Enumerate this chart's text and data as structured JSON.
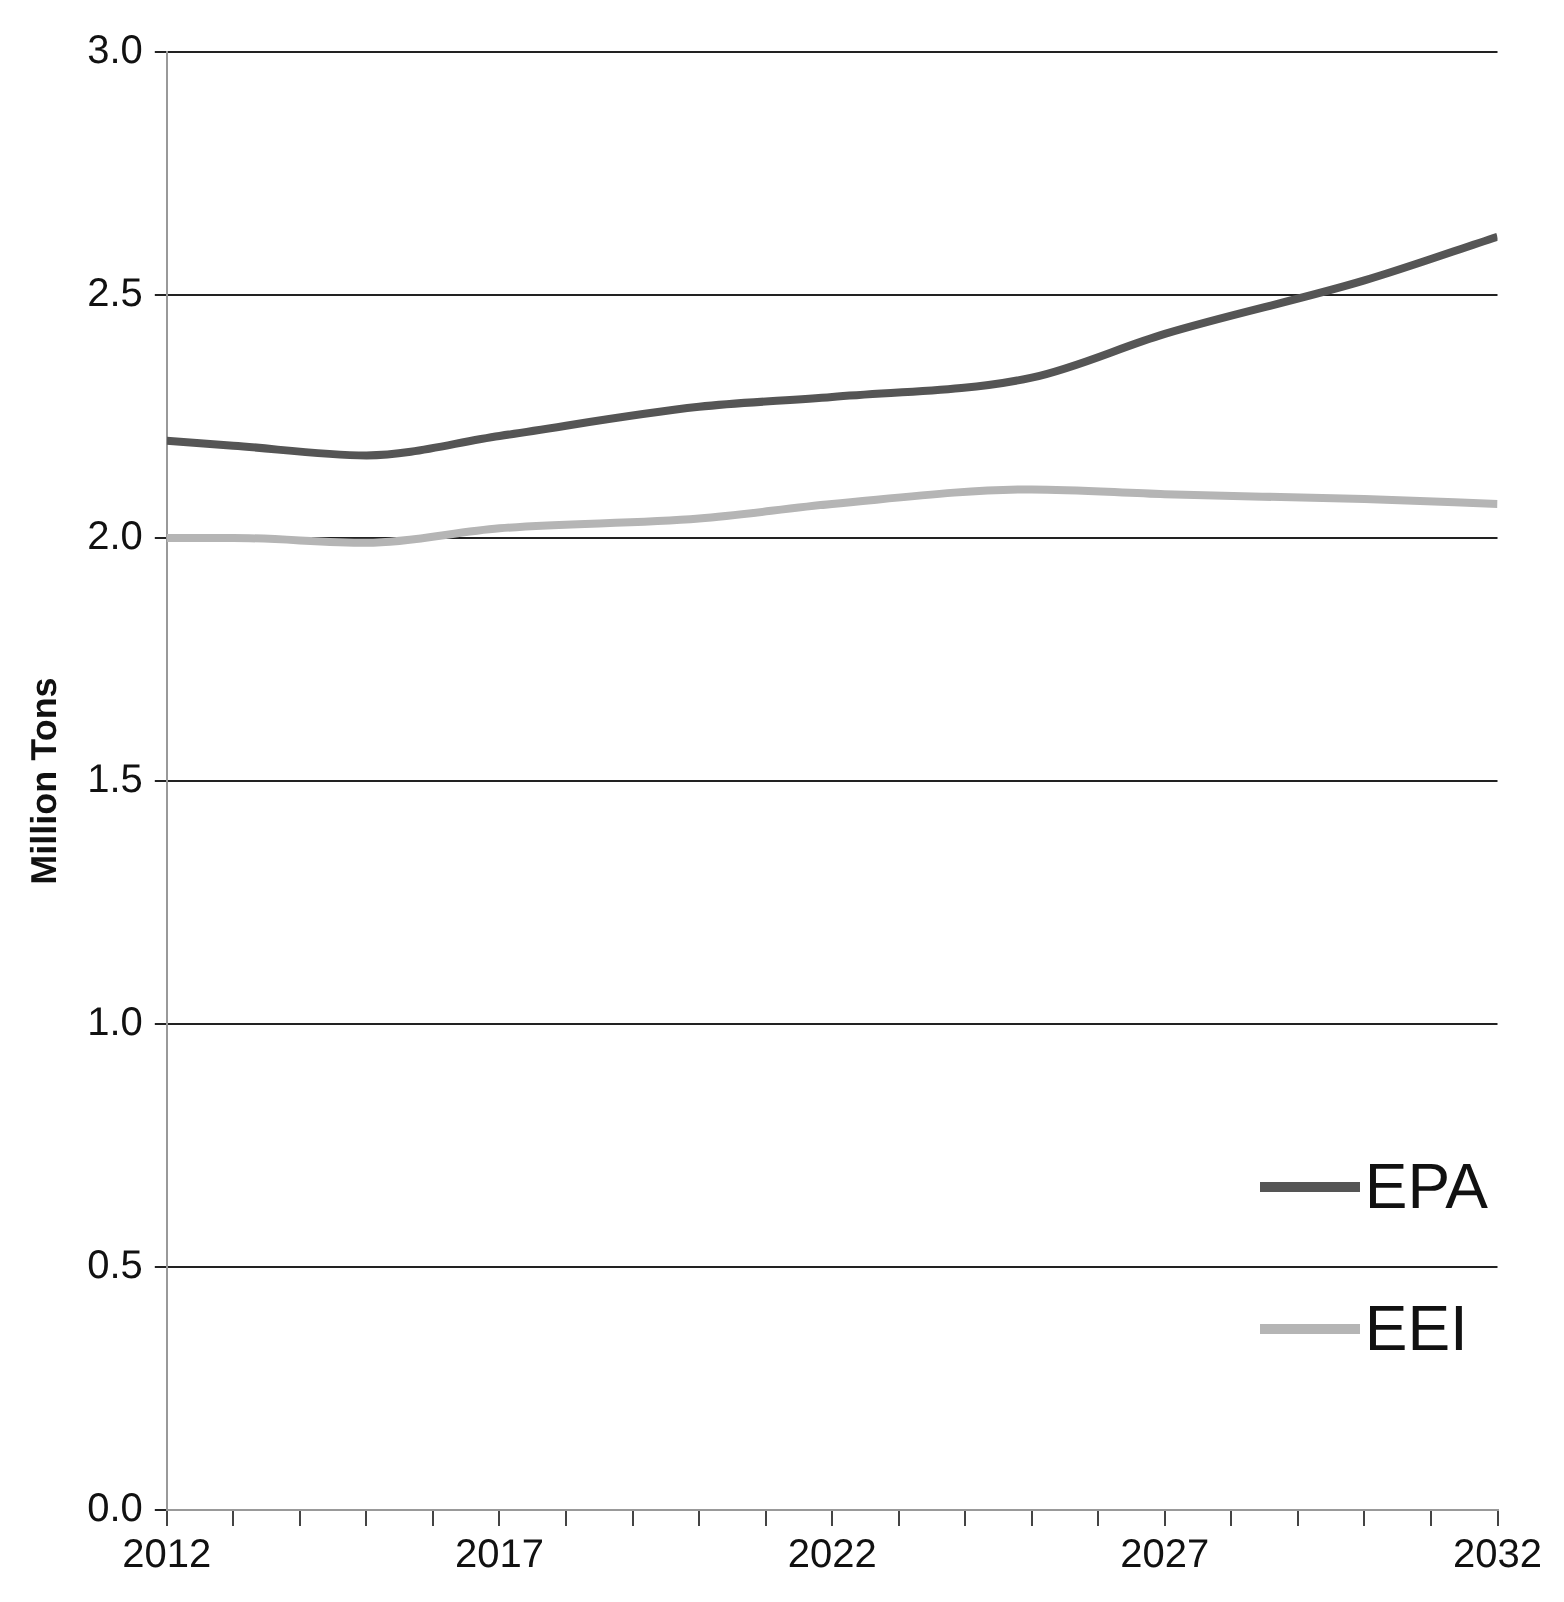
{
  "chart_data": {
    "type": "line",
    "ylabel": "Million Tons",
    "xlim": [
      2012,
      2032
    ],
    "xticks": [
      2012,
      {
        "value": 2013,
        "label": null
      },
      {
        "value": 2014,
        "label": null
      },
      {
        "value": 2015,
        "label": null
      },
      {
        "value": 2016,
        "label": null
      },
      2017,
      {
        "value": 2018,
        "label": null
      },
      {
        "value": 2019,
        "label": null
      },
      {
        "value": 2020,
        "label": null
      },
      {
        "value": 2021,
        "label": null
      },
      2022,
      {
        "value": 2023,
        "label": null
      },
      {
        "value": 2024,
        "label": null
      },
      {
        "value": 2025,
        "label": null
      },
      {
        "value": 2026,
        "label": null
      },
      2027,
      {
        "value": 2028,
        "label": null
      },
      {
        "value": 2029,
        "label": null
      },
      {
        "value": 2030,
        "label": null
      },
      {
        "value": 2031,
        "label": null
      },
      2032
    ],
    "ylim": [
      0,
      3
    ],
    "yticks": [
      {
        "value": 0,
        "label": "0.0"
      },
      0.5,
      {
        "value": 1,
        "label": "1.0"
      },
      1.5,
      {
        "value": 2,
        "label": "2.0"
      },
      2.5,
      {
        "value": 3,
        "label": "3.0"
      }
    ],
    "grid": "y",
    "legend": "bottom right",
    "marker": "none",
    "line_style": "solid",
    "series": [
      {
        "name": "EPA",
        "color": "#555555",
        "x": [
          2012,
          2013,
          2015,
          2017,
          2020,
          2022,
          2025,
          2027,
          2030,
          2032
        ],
        "values": [
          2.2,
          2.19,
          2.17,
          2.21,
          2.27,
          2.29,
          2.33,
          2.42,
          2.53,
          2.62
        ]
      },
      {
        "name": "EEI",
        "color": "#b5b5b5",
        "x": [
          2012,
          2013,
          2015,
          2017,
          2020,
          2022,
          2025,
          2027,
          2030,
          2032
        ],
        "values": [
          2.0,
          2.0,
          1.99,
          2.02,
          2.04,
          2.07,
          2.1,
          2.09,
          2.08,
          2.07
        ]
      }
    ]
  }
}
